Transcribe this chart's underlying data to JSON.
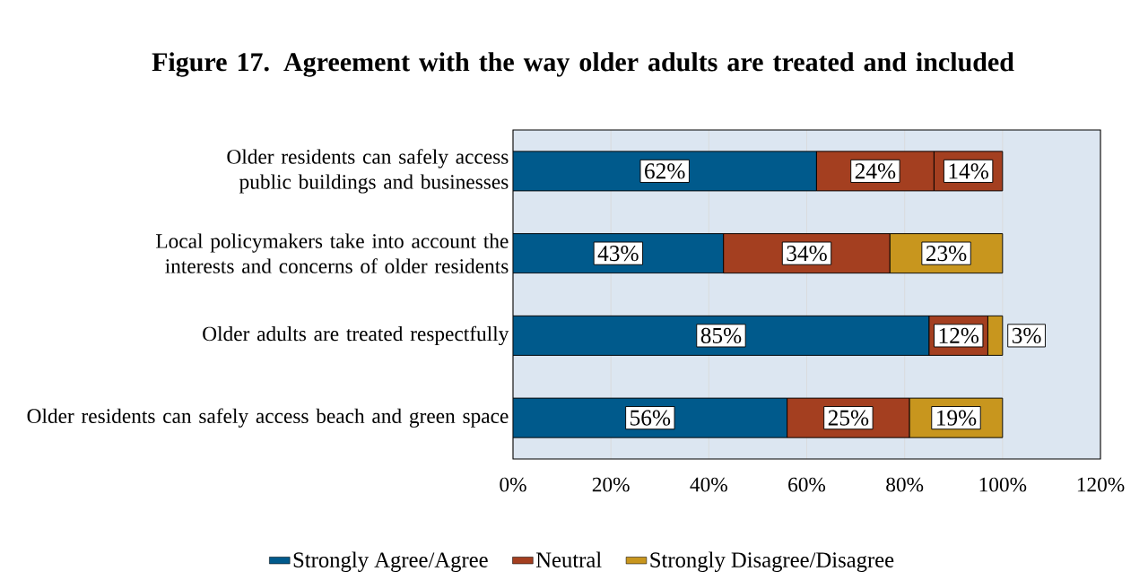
{
  "chart_data": {
    "type": "bar",
    "orientation": "horizontal",
    "stacked": true,
    "title": "Figure 17. Agreement with the way older adults are treated and included",
    "categories": [
      "Older residents can safely access public buildings and businesses",
      "Local policymakers take into account the interests and concerns of older residents",
      "Older adults are treated respectfully",
      "Older residents can safely access beach and green space"
    ],
    "series": [
      {
        "name": "Strongly Agree/Agree",
        "color": "#005a8c",
        "values": [
          62,
          43,
          85,
          56
        ],
        "value_labels": [
          "62%",
          "43%",
          "85%",
          "56%"
        ]
      },
      {
        "name": "Neutral",
        "color": "#a43f20",
        "values": [
          24,
          34,
          12,
          25
        ],
        "value_labels": [
          "24%",
          "34%",
          "12%",
          "25%"
        ]
      },
      {
        "name": "Strongly Disagree/Disagree",
        "color": "#c8961e",
        "colors": [
          "#a43f20",
          "#c8961e",
          "#c8961e",
          "#c8961e"
        ],
        "values": [
          14,
          23,
          3,
          19
        ],
        "value_labels": [
          "14%",
          "23%",
          "3%",
          "19%"
        ]
      }
    ],
    "xlim": [
      0,
      120
    ],
    "xticks": [
      {
        "value": 0,
        "label": "0%"
      },
      {
        "value": 20,
        "label": "20%"
      },
      {
        "value": 40,
        "label": "40%"
      },
      {
        "value": 60,
        "label": "60%"
      },
      {
        "value": 80,
        "label": "80%"
      },
      {
        "value": 100,
        "label": "100%"
      },
      {
        "value": 120,
        "label": "120%"
      }
    ],
    "grid": "x",
    "legend": "bottom"
  }
}
